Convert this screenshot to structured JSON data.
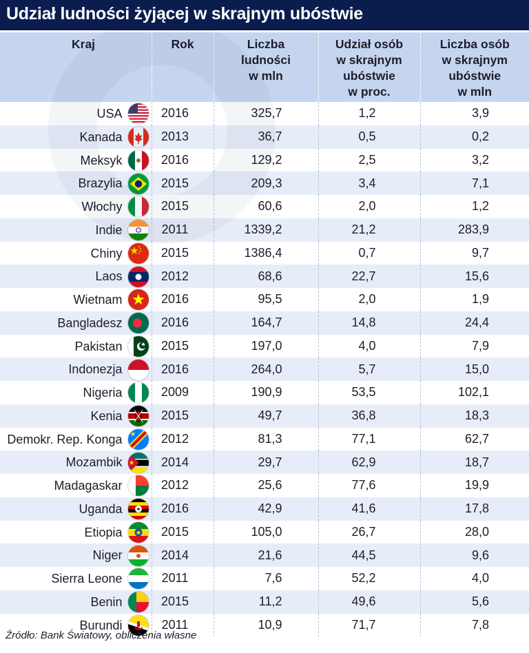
{
  "title": "Udział ludności żyjącej w skrajnym ubóstwie",
  "source": "Źródło: Bank Światowy, obliczenia własne",
  "colors": {
    "title_bg": "#0b1c4e",
    "header_bg": "#c6d5ef",
    "row_alt": "#e7edf8"
  },
  "chart_data": {
    "type": "table",
    "columns": [
      "Kraj",
      "Rok",
      "Liczba\nludności\nw mln",
      "Udział osób\nw skrajnym\nubóstwie\nw proc.",
      "Liczba osób\nw skrajnym\nubóstwie\nw mln"
    ],
    "rows": [
      {
        "country": "USA",
        "flag": "usa-flag-icon",
        "year": "2016",
        "population": "325,7",
        "share": "1,2",
        "poor": "3,9"
      },
      {
        "country": "Kanada",
        "flag": "canada-flag-icon",
        "year": "2013",
        "population": "36,7",
        "share": "0,5",
        "poor": "0,2"
      },
      {
        "country": "Meksyk",
        "flag": "mexico-flag-icon",
        "year": "2016",
        "population": "129,2",
        "share": "2,5",
        "poor": "3,2"
      },
      {
        "country": "Brazylia",
        "flag": "brazil-flag-icon",
        "year": "2015",
        "population": "209,3",
        "share": "3,4",
        "poor": "7,1"
      },
      {
        "country": "Włochy",
        "flag": "italy-flag-icon",
        "year": "2015",
        "population": "60,6",
        "share": "2,0",
        "poor": "1,2"
      },
      {
        "country": "Indie",
        "flag": "india-flag-icon",
        "year": "2011",
        "population": "1339,2",
        "share": "21,2",
        "poor": "283,9"
      },
      {
        "country": "Chiny",
        "flag": "china-flag-icon",
        "year": "2015",
        "population": "1386,4",
        "share": "0,7",
        "poor": "9,7"
      },
      {
        "country": "Laos",
        "flag": "laos-flag-icon",
        "year": "2012",
        "population": "68,6",
        "share": "22,7",
        "poor": "15,6"
      },
      {
        "country": "Wietnam",
        "flag": "vietnam-flag-icon",
        "year": "2016",
        "population": "95,5",
        "share": "2,0",
        "poor": "1,9"
      },
      {
        "country": "Bangladesz",
        "flag": "bangladesh-flag-icon",
        "year": "2016",
        "population": "164,7",
        "share": "14,8",
        "poor": "24,4"
      },
      {
        "country": "Pakistan",
        "flag": "pakistan-flag-icon",
        "year": "2015",
        "population": "197,0",
        "share": "4,0",
        "poor": "7,9"
      },
      {
        "country": "Indonezja",
        "flag": "indonesia-flag-icon",
        "year": "2016",
        "population": "264,0",
        "share": "5,7",
        "poor": "15,0"
      },
      {
        "country": "Nigeria",
        "flag": "nigeria-flag-icon",
        "year": "2009",
        "population": "190,9",
        "share": "53,5",
        "poor": "102,1"
      },
      {
        "country": "Kenia",
        "flag": "kenya-flag-icon",
        "year": "2015",
        "population": "49,7",
        "share": "36,8",
        "poor": "18,3"
      },
      {
        "country": "Demokr. Rep. Konga",
        "flag": "dr-congo-flag-icon",
        "year": "2012",
        "population": "81,3",
        "share": "77,1",
        "poor": "62,7"
      },
      {
        "country": "Mozambik",
        "flag": "mozambique-flag-icon",
        "year": "2014",
        "population": "29,7",
        "share": "62,9",
        "poor": "18,7"
      },
      {
        "country": "Madagaskar",
        "flag": "madagascar-flag-icon",
        "year": "2012",
        "population": "25,6",
        "share": "77,6",
        "poor": "19,9"
      },
      {
        "country": "Uganda",
        "flag": "uganda-flag-icon",
        "year": "2016",
        "population": "42,9",
        "share": "41,6",
        "poor": "17,8"
      },
      {
        "country": "Etiopia",
        "flag": "ethiopia-flag-icon",
        "year": "2015",
        "population": "105,0",
        "share": "26,7",
        "poor": "28,0"
      },
      {
        "country": "Niger",
        "flag": "niger-flag-icon",
        "year": "2014",
        "population": "21,6",
        "share": "44,5",
        "poor": "9,6"
      },
      {
        "country": "Sierra Leone",
        "flag": "sierra-leone-flag-icon",
        "year": "2011",
        "population": "7,6",
        "share": "52,2",
        "poor": "4,0"
      },
      {
        "country": "Benin",
        "flag": "benin-flag-icon",
        "year": "2015",
        "population": "11,2",
        "share": "49,6",
        "poor": "5,6"
      },
      {
        "country": "Burundi",
        "flag": "burundi-flag-icon",
        "year": "2011",
        "population": "10,9",
        "share": "71,7",
        "poor": "7,8"
      }
    ]
  }
}
